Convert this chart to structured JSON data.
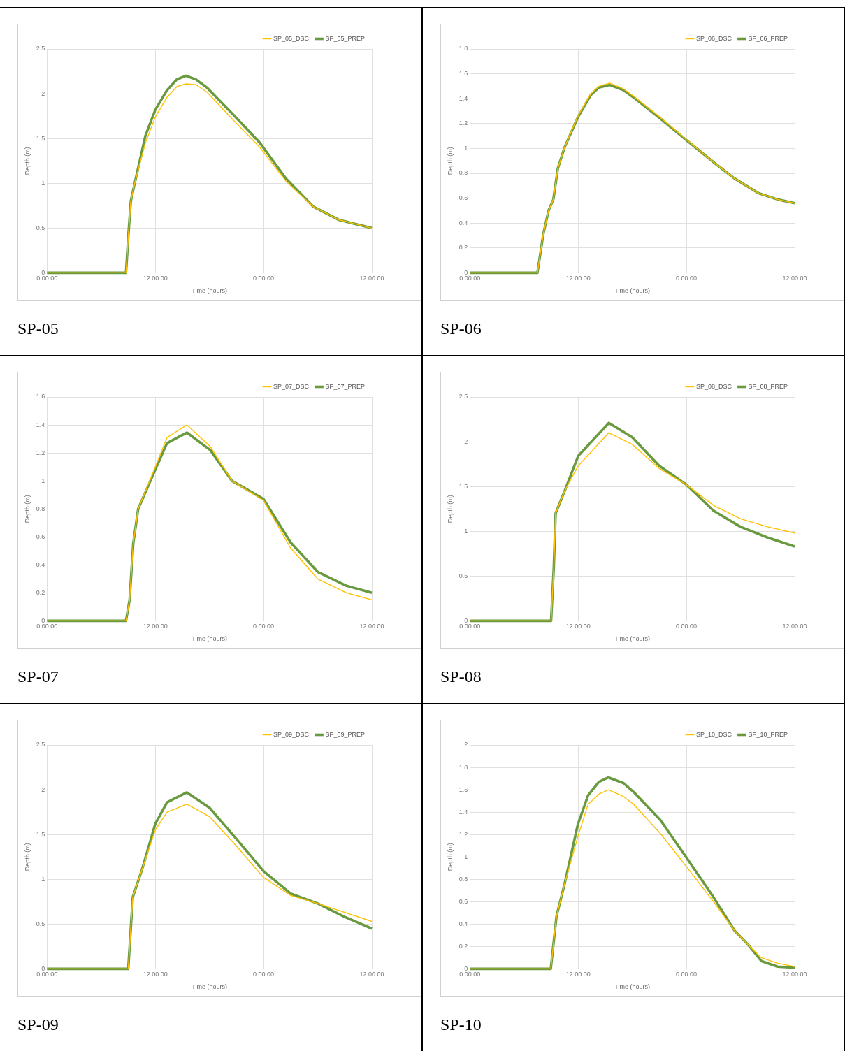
{
  "chart_data": [
    {
      "type": "line",
      "xlabel": "Time (hours)",
      "ylabel": "Depth (m)",
      "xlim": [
        "--01-01T00:00",
        "--01-02T12:00"
      ],
      "xticks": [
        {
          "value": "--01-01T00:00",
          "label": "0:00:00"
        },
        {
          "value": "--01-01T12:00",
          "label": "12:00:00"
        },
        {
          "value": "--01-02T00:00",
          "label": "0:00:00"
        },
        {
          "value": "--01-02T12:00",
          "label": "12:00:00"
        }
      ],
      "ylim": [
        0,
        2.5
      ],
      "yticks": [
        0,
        0.5,
        1,
        1.5,
        2,
        2.5
      ],
      "grid": true,
      "legend": "top right",
      "annotations": [
        "SP-05"
      ],
      "x": [
        "--01-01T00:00",
        "--01-01T08:45",
        "--01-01T09:00",
        "--01-01T09:17",
        "--01-01T09:43",
        "--01-01T10:54",
        "--01-01T12:00",
        "--01-01T13:18",
        "--01-01T14:24",
        "--01-01T15:24",
        "--01-01T16:30",
        "--01-01T17:42",
        "--01-01T20:36",
        "--01-01T23:36",
        "--01-02T02:30",
        "--01-02T05:30",
        "--01-02T08:24",
        "--01-02T12:00"
      ],
      "series": [
        {
          "name": "SP_05_DSC",
          "color": "#ffc000",
          "values": [
            0,
            0,
            0.4,
            0.8,
            1.0,
            1.45,
            1.74,
            1.96,
            2.08,
            2.11,
            2.1,
            2.02,
            1.71,
            1.4,
            1.02,
            0.74,
            0.59,
            0.5
          ]
        },
        {
          "name": "SP_05_PREP",
          "color": "#6a9a3f",
          "values": [
            0,
            0,
            0.4,
            0.8,
            1.0,
            1.53,
            1.82,
            2.04,
            2.16,
            2.2,
            2.16,
            2.07,
            1.77,
            1.45,
            1.05,
            0.74,
            0.59,
            0.5
          ]
        }
      ]
    },
    {
      "type": "line",
      "xlabel": "Time (hours)",
      "ylabel": "Depth (m)",
      "xlim": [
        "--01-01T00:00",
        "--01-02T12:00"
      ],
      "xticks": [
        {
          "value": "--01-01T00:00",
          "label": "0:00:00"
        },
        {
          "value": "--01-01T12:00",
          "label": "12:00:00"
        },
        {
          "value": "--01-02T00:00",
          "label": "0:00:00"
        },
        {
          "value": "--01-02T12:00",
          "label": "12:00:00"
        }
      ],
      "ylim": [
        0,
        1.8
      ],
      "yticks": [
        0,
        0.2,
        0.4,
        0.6,
        0.8,
        1,
        1.2,
        1.4,
        1.6,
        1.8
      ],
      "grid": true,
      "legend": "top right",
      "annotations": [
        "SP-06"
      ],
      "x": [
        "--01-01T00:00",
        "--01-01T07:29",
        "--01-01T08:08",
        "--01-01T08:43",
        "--01-01T09:15",
        "--01-01T09:45",
        "--01-01T10:30",
        "--01-01T11:58",
        "--01-01T13:24",
        "--01-01T14:18",
        "--01-01T15:30",
        "--01-01T17:00",
        "--01-01T18:09",
        "--01-01T21:06",
        "--01-02T00:02",
        "--01-02T03:00",
        "--01-02T05:18",
        "--01-02T08:00",
        "--01-02T10:06",
        "--01-02T12:00"
      ],
      "series": [
        {
          "name": "SP_06_DSC",
          "color": "#ffc000",
          "values": [
            0,
            0,
            0.31,
            0.5,
            0.59,
            0.84,
            1.01,
            1.26,
            1.44,
            1.5,
            1.525,
            1.48,
            1.42,
            1.25,
            1.07,
            0.89,
            0.76,
            0.64,
            0.59,
            0.56
          ]
        },
        {
          "name": "SP_06_PREP",
          "color": "#6a9a3f",
          "values": [
            0,
            0,
            0.31,
            0.5,
            0.59,
            0.84,
            1.01,
            1.25,
            1.43,
            1.49,
            1.51,
            1.47,
            1.41,
            1.24,
            1.065,
            0.89,
            0.76,
            0.64,
            0.59,
            0.56
          ]
        }
      ]
    },
    {
      "type": "line",
      "xlabel": "Time (hours)",
      "ylabel": "Depth (m)",
      "xlim": [
        "--01-01T00:00",
        "--01-02T12:00"
      ],
      "xticks": [
        {
          "value": "--01-01T00:00",
          "label": "0:00:00"
        },
        {
          "value": "--01-01T12:00",
          "label": "12:00:00"
        },
        {
          "value": "--01-02T00:00",
          "label": "0:00:00"
        },
        {
          "value": "--01-02T12:00",
          "label": "12:00:00"
        }
      ],
      "ylim": [
        0,
        1.6
      ],
      "yticks": [
        0,
        0.2,
        0.4,
        0.6,
        0.8,
        1,
        1.2,
        1.4,
        1.6
      ],
      "grid": true,
      "legend": "top right",
      "annotations": [
        "SP-07"
      ],
      "x": [
        "--01-01T00:00",
        "--01-01T08:45",
        "--01-01T09:09",
        "--01-01T09:33",
        "--01-01T10:06",
        "--01-01T12:00",
        "--01-01T13:18",
        "--01-01T15:30",
        "--01-01T18:06",
        "--01-01T20:30",
        "--01-02T00:00",
        "--01-02T03:00",
        "--01-02T06:00",
        "--01-02T09:12",
        "--01-02T12:00"
      ],
      "series": [
        {
          "name": "SP_07_DSC",
          "color": "#ffc000",
          "values": [
            0,
            0,
            0.15,
            0.55,
            0.8,
            1.1,
            1.31,
            1.4,
            1.245,
            1.0,
            0.86,
            0.52,
            0.3,
            0.2,
            0.15
          ]
        },
        {
          "name": "SP_07_PREP",
          "color": "#6a9a3f",
          "values": [
            0,
            0,
            0.15,
            0.55,
            0.8,
            1.08,
            1.27,
            1.345,
            1.22,
            1.0,
            0.87,
            0.56,
            0.35,
            0.25,
            0.2
          ]
        }
      ]
    },
    {
      "type": "line",
      "xlabel": "Time (hours)",
      "ylabel": "Depth (m)",
      "xlim": [
        "--01-01T00:00",
        "--01-02T12:00"
      ],
      "xticks": [
        {
          "value": "--01-01T00:00",
          "label": "0:00:00"
        },
        {
          "value": "--01-01T12:00",
          "label": "12:00:00"
        },
        {
          "value": "--01-02T00:00",
          "label": "0:00:00"
        },
        {
          "value": "--01-02T12:00",
          "label": "12:00:00"
        }
      ],
      "ylim": [
        0,
        2.5
      ],
      "yticks": [
        0,
        0.5,
        1,
        1.5,
        2,
        2.5
      ],
      "grid": true,
      "legend": "top right",
      "annotations": [
        "SP-08"
      ],
      "x": [
        "--01-01T00:00",
        "--01-01T09:00",
        "--01-01T09:18",
        "--01-01T09:30",
        "--01-01T10:30",
        "--01-01T12:00",
        "--01-01T15:24",
        "--01-01T18:00",
        "--01-01T21:00",
        "--01-02T00:00",
        "--01-02T03:00",
        "--01-02T06:00",
        "--01-02T09:00",
        "--01-02T12:00"
      ],
      "series": [
        {
          "name": "SP_08_DSC",
          "color": "#ffc000",
          "values": [
            0,
            0,
            0.6,
            1.2,
            1.45,
            1.73,
            2.1,
            1.97,
            1.7,
            1.52,
            1.29,
            1.14,
            1.05,
            0.98
          ]
        },
        {
          "name": "SP_08_PREP",
          "color": "#6a9a3f",
          "values": [
            0,
            0,
            0.6,
            1.2,
            1.45,
            1.84,
            2.21,
            2.05,
            1.73,
            1.52,
            1.23,
            1.05,
            0.93,
            0.83
          ]
        }
      ]
    },
    {
      "type": "line",
      "xlabel": "Time (hours)",
      "ylabel": "Depth (m)",
      "xlim": [
        "--01-01T00:00",
        "--01-02T12:00"
      ],
      "xticks": [
        {
          "value": "--01-01T00:00",
          "label": "0:00:00"
        },
        {
          "value": "--01-01T12:00",
          "label": "12:00:00"
        },
        {
          "value": "--01-02T00:00",
          "label": "0:00:00"
        },
        {
          "value": "--01-02T12:00",
          "label": "12:00:00"
        }
      ],
      "ylim": [
        0,
        2.5
      ],
      "yticks": [
        0,
        0.5,
        1,
        1.5,
        2,
        2.5
      ],
      "grid": true,
      "legend": "top right",
      "annotations": [
        "SP-09"
      ],
      "x": [
        "--01-01T00:00",
        "--01-01T09:00",
        "--01-01T09:30",
        "--01-01T10:30",
        "--01-01T12:00",
        "--01-01T13:18",
        "--01-01T15:30",
        "--01-01T18:00",
        "--01-01T21:00",
        "--01-02T00:00",
        "--01-02T03:00",
        "--01-02T06:00",
        "--01-02T09:00",
        "--01-02T12:00"
      ],
      "series": [
        {
          "name": "SP_09_DSC",
          "color": "#ffc000",
          "values": [
            0,
            0,
            0.8,
            1.1,
            1.55,
            1.75,
            1.84,
            1.7,
            1.37,
            1.02,
            0.82,
            0.73,
            0.63,
            0.53
          ]
        },
        {
          "name": "SP_09_PREP",
          "color": "#6a9a3f",
          "values": [
            0,
            0,
            0.8,
            1.1,
            1.62,
            1.86,
            1.97,
            1.8,
            1.45,
            1.09,
            0.84,
            0.73,
            0.58,
            0.45
          ]
        }
      ]
    },
    {
      "type": "line",
      "xlabel": "Time (hours)",
      "ylabel": "Depth (m)",
      "xlim": [
        "--01-01T00:00",
        "--01-02T12:00"
      ],
      "xticks": [
        {
          "value": "--01-01T00:00",
          "label": "0:00:00"
        },
        {
          "value": "--01-01T12:00",
          "label": "12:00:00"
        },
        {
          "value": "--01-02T00:00",
          "label": "0:00:00"
        },
        {
          "value": "--01-02T12:00",
          "label": "12:00:00"
        }
      ],
      "ylim": [
        0,
        2
      ],
      "yticks": [
        0,
        0.2,
        0.4,
        0.6,
        0.8,
        1,
        1.2,
        1.4,
        1.6,
        1.8,
        2
      ],
      "grid": true,
      "legend": "top right",
      "annotations": [
        "SP-10"
      ],
      "x": [
        "--01-01T00:00",
        "--01-01T08:58",
        "--01-01T09:36",
        "--01-01T10:30",
        "--01-01T11:58",
        "--01-01T13:06",
        "--01-01T14:18",
        "--01-01T15:21",
        "--01-01T17:00",
        "--01-01T18:09",
        "--01-01T21:06",
        "--01-02T00:02",
        "--01-02T03:00",
        "--01-02T05:21",
        "--01-02T06:48",
        "--01-02T08:18",
        "--01-02T10:06",
        "--01-02T12:00"
      ],
      "series": [
        {
          "name": "SP_10_DSC",
          "color": "#ffc000",
          "values": [
            0,
            0,
            0.47,
            0.76,
            1.18,
            1.47,
            1.56,
            1.6,
            1.54,
            1.47,
            1.21,
            0.91,
            0.6,
            0.34,
            0.22,
            0.1,
            0.05,
            0.02
          ]
        },
        {
          "name": "SP_10_PREP",
          "color": "#6a9a3f",
          "values": [
            0,
            0,
            0.47,
            0.76,
            1.29,
            1.55,
            1.67,
            1.71,
            1.66,
            1.58,
            1.33,
            0.99,
            0.64,
            0.34,
            0.22,
            0.07,
            0.02,
            0.01
          ]
        }
      ]
    }
  ]
}
